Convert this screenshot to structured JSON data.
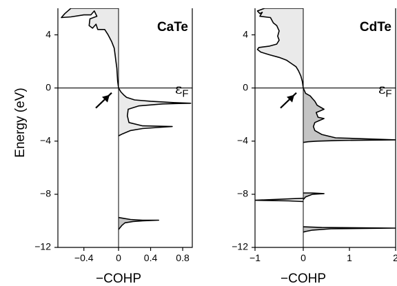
{
  "chart_data": [
    {
      "type": "area",
      "title": "CaTe",
      "xlabel": "−COHP",
      "ylabel": "Energy (eV)",
      "xlim": [
        -0.7,
        0.92
      ],
      "ylim": [
        -12,
        6
      ],
      "xticks": [
        -0.4,
        0,
        0.4,
        0.8
      ],
      "xtick_labels": [
        "−0.4",
        "0",
        "0.4",
        "0.8"
      ],
      "yticks": [
        -12,
        -8,
        -4,
        0,
        4
      ],
      "ytick_labels": [
        "−12",
        "−8",
        "−4",
        "0",
        "4"
      ],
      "fermi_label": "εF",
      "fermi_level": 0,
      "arrow_points_to": [
        0,
        0
      ],
      "series": [
        {
          "values": [
            [
              0,
              6.0
            ],
            [
              -0.55,
              6.0
            ],
            [
              -0.62,
              5.6
            ],
            [
              -0.66,
              5.3
            ],
            [
              -0.55,
              5.35
            ],
            [
              -0.4,
              5.5
            ],
            [
              -0.32,
              5.5
            ],
            [
              -0.28,
              5.8
            ],
            [
              -0.25,
              5.4
            ],
            [
              -0.33,
              5.2
            ],
            [
              -0.34,
              4.7
            ],
            [
              -0.3,
              4.5
            ],
            [
              -0.26,
              4.8
            ],
            [
              -0.24,
              4.4
            ],
            [
              -0.16,
              4.4
            ],
            [
              -0.12,
              4.0
            ],
            [
              -0.08,
              3.5
            ],
            [
              -0.05,
              3.0
            ],
            [
              -0.04,
              2.5
            ],
            [
              -0.03,
              2.0
            ],
            [
              -0.02,
              1.5
            ],
            [
              -0.015,
              1.0
            ],
            [
              -0.01,
              0.5
            ],
            [
              0,
              0.0
            ],
            [
              0.03,
              -0.3
            ],
            [
              0.07,
              -0.55
            ],
            [
              0.1,
              -0.7
            ],
            [
              0.2,
              -0.9
            ],
            [
              0.4,
              -1.0
            ],
            [
              0.7,
              -1.1
            ],
            [
              0.9,
              -1.15
            ],
            [
              0.55,
              -1.2
            ],
            [
              0.25,
              -1.35
            ],
            [
              0.12,
              -1.6
            ],
            [
              0.11,
              -2.1
            ],
            [
              0.13,
              -2.6
            ],
            [
              0.3,
              -2.85
            ],
            [
              0.67,
              -2.9
            ],
            [
              0.55,
              -2.95
            ],
            [
              0.3,
              -3.05
            ],
            [
              0.15,
              -3.2
            ],
            [
              0.05,
              -3.45
            ],
            [
              0.0,
              -3.6
            ]
          ]
        },
        {
          "values": [
            [
              0,
              -9.75
            ],
            [
              0.05,
              -9.8
            ],
            [
              0.15,
              -9.9
            ],
            [
              0.3,
              -9.95
            ],
            [
              0.5,
              -9.95
            ],
            [
              0.3,
              -10.0
            ],
            [
              0.18,
              -10.05
            ],
            [
              0.08,
              -10.15
            ],
            [
              0.04,
              -10.35
            ],
            [
              0,
              -10.65
            ]
          ]
        }
      ]
    },
    {
      "type": "area",
      "title": "CdTe",
      "xlabel": "−COHP",
      "ylabel": "",
      "xlim": [
        -1.0,
        2.0
      ],
      "ylim": [
        -12,
        6
      ],
      "xticks": [
        -1,
        0,
        1,
        2
      ],
      "xtick_labels": [
        "−1",
        "0",
        "1",
        "2"
      ],
      "yticks": [
        -12,
        -8,
        -4,
        0,
        4
      ],
      "ytick_labels": [
        "−12",
        "−8",
        "−4",
        "0",
        "4"
      ],
      "fermi_label": "εF",
      "fermi_level": 0,
      "arrow_points_to": [
        0,
        0
      ],
      "series": [
        {
          "values": [
            [
              0,
              6.0
            ],
            [
              -0.8,
              6.0
            ],
            [
              -0.95,
              5.8
            ],
            [
              -0.9,
              5.6
            ],
            [
              -0.85,
              5.7
            ],
            [
              -0.9,
              5.4
            ],
            [
              -0.68,
              5.3
            ],
            [
              -0.62,
              4.9
            ],
            [
              -0.55,
              4.7
            ],
            [
              -0.5,
              4.3
            ],
            [
              -0.53,
              3.9
            ],
            [
              -0.5,
              3.6
            ],
            [
              -0.55,
              3.3
            ],
            [
              -0.7,
              3.15
            ],
            [
              -0.92,
              3.05
            ],
            [
              -0.95,
              2.9
            ],
            [
              -0.88,
              2.7
            ],
            [
              -0.7,
              2.5
            ],
            [
              -0.5,
              2.3
            ],
            [
              -0.35,
              2.1
            ],
            [
              -0.25,
              1.85
            ],
            [
              -0.15,
              1.6
            ],
            [
              -0.1,
              1.3
            ],
            [
              -0.05,
              0.9
            ],
            [
              -0.02,
              0.5
            ],
            [
              0,
              0.0
            ]
          ]
        },
        {
          "values": [
            [
              0,
              0.0
            ],
            [
              0.05,
              -0.4
            ],
            [
              0.15,
              -0.6
            ],
            [
              0.2,
              -0.8
            ],
            [
              0.25,
              -1.0
            ],
            [
              0.3,
              -1.3
            ],
            [
              0.45,
              -1.6
            ],
            [
              0.35,
              -1.75
            ],
            [
              0.28,
              -1.85
            ],
            [
              0.32,
              -2.2
            ],
            [
              0.45,
              -2.3
            ],
            [
              0.35,
              -2.45
            ],
            [
              0.25,
              -2.6
            ],
            [
              0.22,
              -2.9
            ],
            [
              0.25,
              -3.2
            ],
            [
              0.4,
              -3.5
            ],
            [
              0.7,
              -3.75
            ],
            [
              2.0,
              -3.9
            ],
            [
              0.8,
              -3.95
            ],
            [
              0.3,
              -4.0
            ],
            [
              0.1,
              -4.05
            ],
            [
              0,
              -4.1
            ]
          ]
        },
        {
          "values": [
            [
              0,
              -7.9
            ],
            [
              0.2,
              -7.9
            ],
            [
              0.45,
              -7.95
            ],
            [
              0.2,
              -8.0
            ],
            [
              0.05,
              -8.2
            ],
            [
              0,
              -8.4
            ]
          ]
        },
        {
          "values": [
            [
              0,
              -8.3
            ],
            [
              -0.3,
              -8.35
            ],
            [
              -1.0,
              -8.45
            ],
            [
              -0.3,
              -8.5
            ],
            [
              0,
              -8.55
            ]
          ]
        },
        {
          "values": [
            [
              0,
              -10.45
            ],
            [
              0.4,
              -10.5
            ],
            [
              2.0,
              -10.55
            ],
            [
              0.6,
              -10.6
            ],
            [
              0.2,
              -10.7
            ],
            [
              0.05,
              -10.8
            ],
            [
              0,
              -10.85
            ]
          ]
        }
      ]
    }
  ],
  "colors": {
    "fill_negative": "#eaeaea",
    "fill_positive": "#c4c4c4",
    "line": "#000000"
  }
}
